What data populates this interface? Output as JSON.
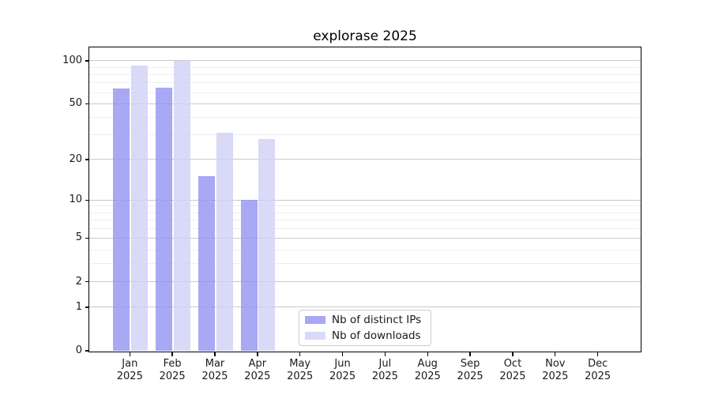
{
  "figure": {
    "background": "#ffffff"
  },
  "chart_data": {
    "type": "bar",
    "title": "explorase 2025",
    "categories": [
      "Jan",
      "Feb",
      "Mar",
      "Apr",
      "May",
      "Jun",
      "Jul",
      "Aug",
      "Sep",
      "Oct",
      "Nov",
      "Dec"
    ],
    "year_label": "2025",
    "series": [
      {
        "name": "Nb of distinct IPs",
        "color": "#9595f3",
        "values": [
          64,
          65,
          15,
          10,
          0,
          0,
          0,
          0,
          0,
          0,
          0,
          0
        ]
      },
      {
        "name": "Nb of downloads",
        "color": "#d1d1f7",
        "values": [
          93,
          100,
          31,
          28,
          0,
          0,
          0,
          0,
          0,
          0,
          0,
          0
        ]
      }
    ],
    "yscale": "log1p",
    "ylim": [
      0,
      124
    ],
    "ytick_values": [
      0,
      1,
      2,
      5,
      10,
      20,
      50,
      100
    ],
    "yminor_values": [
      3,
      4,
      6,
      7,
      8,
      9,
      30,
      40,
      60,
      70,
      80,
      90
    ],
    "grid": true,
    "legend_position": "lower-center",
    "colors": {
      "grid_major": "#c9c9c9",
      "grid_minor": "#eeeeee",
      "axis": "#000000",
      "text": "#1a1a1a",
      "legend_border": "#cccccc"
    }
  }
}
